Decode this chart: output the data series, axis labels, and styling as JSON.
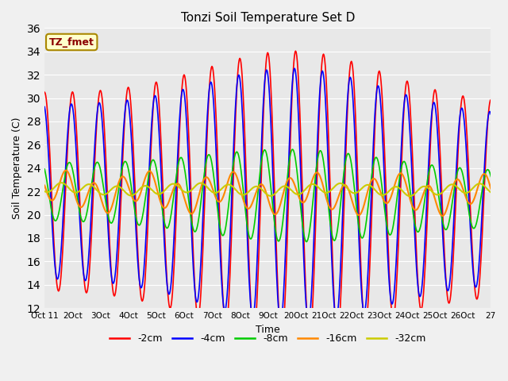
{
  "title": "Tonzi Soil Temperature Set D",
  "xlabel": "Time",
  "ylabel": "Soil Temperature (C)",
  "ylim": [
    12,
    36
  ],
  "yticks": [
    12,
    14,
    16,
    18,
    20,
    22,
    24,
    26,
    28,
    30,
    32,
    34,
    36
  ],
  "series_colors": {
    "-2cm": "#ff0000",
    "-4cm": "#0000ff",
    "-8cm": "#00cc00",
    "-16cm": "#ff8800",
    "-32cm": "#cccc00"
  },
  "legend_label": "TZ_fmet",
  "fig_bg": "#f0f0f0",
  "ax_bg": "#e8e8e8",
  "xtick_labels": [
    "Oct 11",
    "2Oct",
    "3Oct",
    "4Oct",
    "5Oct",
    "6Oct",
    "7Oct",
    "8Oct",
    "9Oct",
    "20Oct",
    "21Oct",
    "22Oct",
    "23Oct",
    "24Oct",
    "25Oct",
    "26Oct",
    "27"
  ],
  "line_width": 1.2
}
